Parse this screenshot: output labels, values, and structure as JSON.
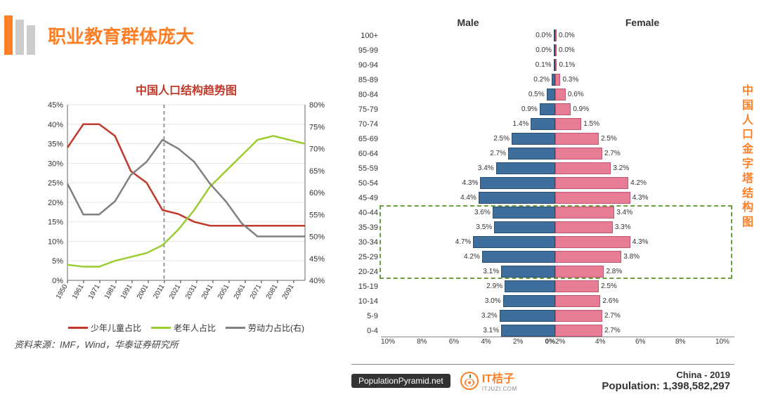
{
  "header": {
    "title": "职业教育群体庞大",
    "title_color": "#ff7f27",
    "accent_bars": [
      "#ff7f27",
      "#cccccc",
      "#cccccc"
    ]
  },
  "left_chart": {
    "type": "line",
    "title": "中国人口结构趋势图",
    "title_color": "#c0392b",
    "xlim": [
      1950,
      2100
    ],
    "xtick_labels": [
      "1950",
      "1961",
      "1971",
      "1981",
      "1991",
      "2001",
      "2011",
      "2021",
      "2031",
      "2041",
      "2051",
      "2061",
      "2071",
      "2081",
      "2091"
    ],
    "left_axis": {
      "ylim": [
        0,
        45
      ],
      "tick_step": 5,
      "fmt": "%",
      "color": "#333",
      "ticks": [
        "0%",
        "5%",
        "10%",
        "15%",
        "20%",
        "25%",
        "30%",
        "35%",
        "40%",
        "45%"
      ]
    },
    "right_axis": {
      "ylim": [
        40,
        80
      ],
      "tick_step": 5,
      "fmt": "%",
      "color": "#333",
      "ticks": [
        "40%",
        "45%",
        "50%",
        "55%",
        "60%",
        "65%",
        "70%",
        "75%",
        "80%"
      ]
    },
    "grid_color": "#e5e5e5",
    "background_color": "#ffffff",
    "vline_x": 2011,
    "vline_color": "#999999",
    "series": [
      {
        "name": "children",
        "label": "少年儿童占比",
        "color": "#c0392b",
        "axis": "left",
        "line_width": 2.5,
        "x": [
          1950,
          1960,
          1970,
          1980,
          1990,
          2000,
          2010,
          2020,
          2030,
          2040,
          2050,
          2060,
          2070,
          2080,
          2090,
          2100
        ],
        "y": [
          34,
          40,
          40,
          37,
          28,
          25,
          18,
          17,
          15,
          14,
          14,
          14,
          14,
          14,
          14,
          14
        ]
      },
      {
        "name": "elderly",
        "label": "老年人占比",
        "color": "#9acd32",
        "axis": "left",
        "line_width": 2.5,
        "x": [
          1950,
          1960,
          1970,
          1980,
          1990,
          2000,
          2010,
          2020,
          2030,
          2040,
          2050,
          2060,
          2070,
          2080,
          2090,
          2100
        ],
        "y": [
          4,
          3.5,
          3.5,
          5,
          6,
          7,
          9,
          13,
          18,
          24,
          28,
          32,
          36,
          37,
          36,
          35
        ]
      },
      {
        "name": "labor",
        "label": "劳动力占比(右)",
        "color": "#808080",
        "axis": "right",
        "line_width": 2.5,
        "x": [
          1950,
          1960,
          1970,
          1980,
          1990,
          2000,
          2010,
          2020,
          2030,
          2040,
          2050,
          2060,
          2070,
          2080,
          2090,
          2100
        ],
        "y": [
          62,
          55,
          55,
          58,
          64,
          67,
          72,
          70,
          67,
          62,
          58,
          53,
          50,
          50,
          50,
          50
        ]
      }
    ],
    "legend_items": [
      {
        "label": "少年儿童占比",
        "color": "#c0392b"
      },
      {
        "label": "老年人占比",
        "color": "#9acd32"
      },
      {
        "label": "劳动力占比(右)",
        "color": "#808080"
      }
    ]
  },
  "source": "资料来源：IMF，Wind，华泰证券研究所",
  "right_chart": {
    "type": "population_pyramid",
    "title_vertical": "中国人口金字塔结构图",
    "title_color": "#ff7f27",
    "header_male": "Male",
    "header_female": "Female",
    "male_color": "#3d6e9c",
    "female_color": "#e77c94",
    "highlight_color": "#6a9f3c",
    "highlight_range": [
      "20-24",
      "40-44"
    ],
    "axis_max_pct": 10,
    "axis_ticks": [
      "10%",
      "8%",
      "6%",
      "4%",
      "2%",
      "0%",
      "2%",
      "4%",
      "6%",
      "8%",
      "10%"
    ],
    "rows": [
      {
        "age": "100+",
        "male": 0.0,
        "female": 0.0
      },
      {
        "age": "95-99",
        "male": 0.0,
        "female": 0.0
      },
      {
        "age": "90-94",
        "male": 0.1,
        "female": 0.1
      },
      {
        "age": "85-89",
        "male": 0.2,
        "female": 0.3
      },
      {
        "age": "80-84",
        "male": 0.5,
        "female": 0.6
      },
      {
        "age": "75-79",
        "male": 0.9,
        "female": 0.9
      },
      {
        "age": "70-74",
        "male": 1.4,
        "female": 1.5
      },
      {
        "age": "65-69",
        "male": 2.5,
        "female": 2.5
      },
      {
        "age": "60-64",
        "male": 2.7,
        "female": 2.7
      },
      {
        "age": "55-59",
        "male": 3.4,
        "female": 3.2
      },
      {
        "age": "50-54",
        "male": 4.3,
        "female": 4.2
      },
      {
        "age": "45-49",
        "male": 4.4,
        "female": 4.3
      },
      {
        "age": "40-44",
        "male": 3.6,
        "female": 3.4
      },
      {
        "age": "35-39",
        "male": 3.5,
        "female": 3.3
      },
      {
        "age": "30-34",
        "male": 4.7,
        "female": 4.3
      },
      {
        "age": "25-29",
        "male": 4.2,
        "female": 3.8
      },
      {
        "age": "20-24",
        "male": 3.1,
        "female": 2.8
      },
      {
        "age": "15-19",
        "male": 2.9,
        "female": 2.5
      },
      {
        "age": "10-14",
        "male": 3.0,
        "female": 2.6
      },
      {
        "age": "5-9",
        "male": 3.2,
        "female": 2.7
      },
      {
        "age": "0-4",
        "male": 3.1,
        "female": 2.7
      }
    ]
  },
  "footer": {
    "badge": "PopulationPyramid.net",
    "brand_name": "IT桔子",
    "brand_sub": "ITJUZI.COM",
    "country_year": "China - 2019",
    "population_label": "Population:",
    "population_value": "1,398,582,297"
  }
}
